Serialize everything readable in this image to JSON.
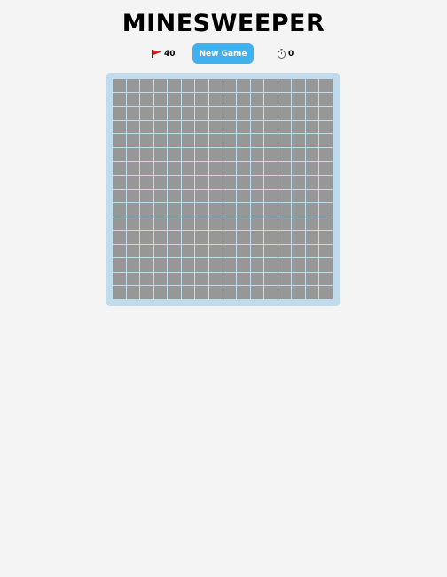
{
  "game": {
    "title": "MINESWEEPER",
    "flags_remaining": "40",
    "new_game_label": "New Game",
    "timer": "0",
    "board": {
      "rows": 16,
      "columns": 16,
      "state": "all cells unrevealed"
    }
  },
  "icons": {
    "flag": "flag-icon",
    "timer": "stopwatch-icon"
  },
  "colors": {
    "page_background": "#f4f4f4",
    "button": "#41b0ef",
    "board_frame": "#c0dcec",
    "unrevealed_cell": "#979797",
    "flag": "#d21e1e"
  }
}
